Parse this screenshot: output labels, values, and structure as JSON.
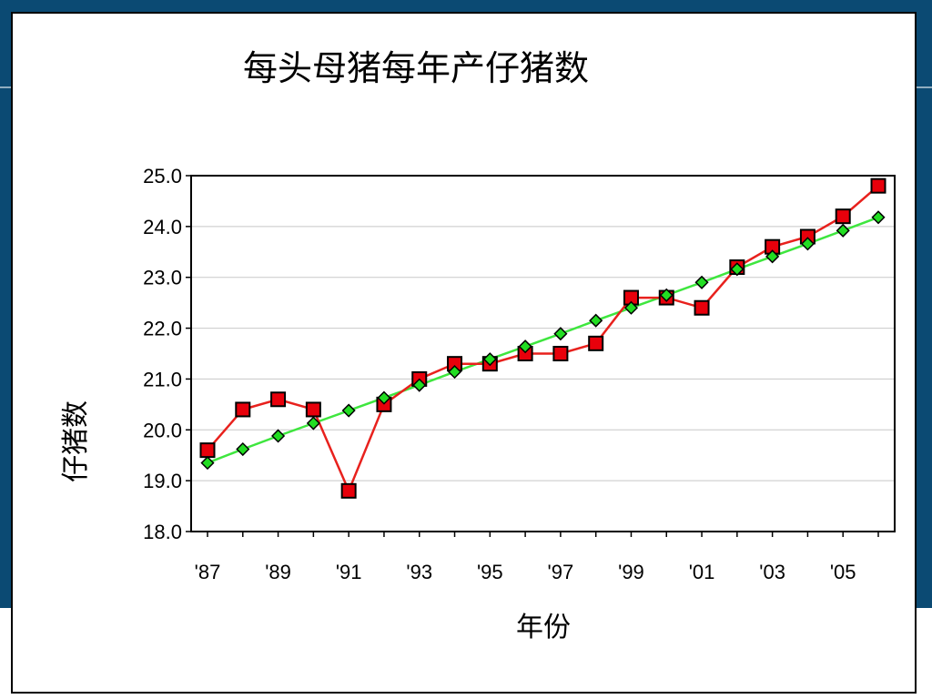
{
  "slide": {
    "background_color": "#0b4a73",
    "frame_color": "#ffffff"
  },
  "chart_data": {
    "type": "line",
    "title": "每头母猪每年产仔猪数",
    "xlabel": "年份",
    "ylabel": "仔猪数",
    "x": [
      1987,
      1988,
      1989,
      1990,
      1991,
      1992,
      1993,
      1994,
      1995,
      1996,
      1997,
      1998,
      1999,
      2000,
      2001,
      2002,
      2003,
      2004,
      2005,
      2006
    ],
    "xtick_values": [
      1987,
      1989,
      1991,
      1993,
      1995,
      1997,
      1999,
      2001,
      2003,
      2005
    ],
    "xtick_labels": [
      "'87",
      "'89",
      "'91",
      "'93",
      "'95",
      "'97",
      "'99",
      "'01",
      "'03",
      "'05"
    ],
    "ylim": [
      18.0,
      25.0
    ],
    "yticks": [
      "18.0",
      "19.0",
      "20.0",
      "21.0",
      "22.0",
      "23.0",
      "24.0",
      "25.0"
    ],
    "grid": true,
    "legend": "none",
    "series": [
      {
        "marker": "square",
        "line_color": "#e8211d",
        "marker_color": "#e8000b",
        "values": [
          19.6,
          20.4,
          20.6,
          20.4,
          18.8,
          20.5,
          21.0,
          21.3,
          21.3,
          21.5,
          21.5,
          21.7,
          22.6,
          22.6,
          22.4,
          23.2,
          23.6,
          23.8,
          24.2,
          24.8
        ]
      },
      {
        "marker": "diamond",
        "line_color": "#3ee63e",
        "marker_color": "#22dd22",
        "values": [
          19.35,
          19.62,
          19.88,
          20.13,
          20.38,
          20.63,
          20.88,
          21.14,
          21.39,
          21.64,
          21.89,
          22.15,
          22.4,
          22.65,
          22.9,
          23.16,
          23.41,
          23.66,
          23.92,
          24.18
        ]
      }
    ]
  }
}
